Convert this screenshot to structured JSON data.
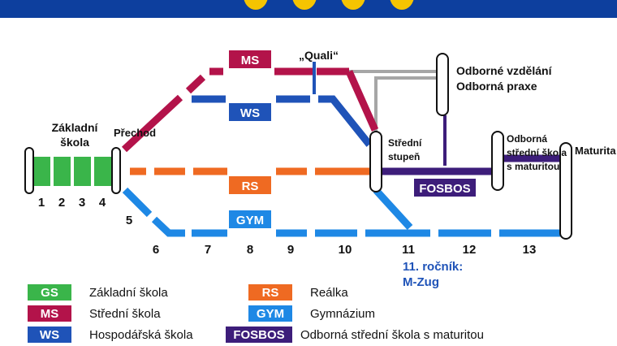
{
  "colors": {
    "gs": "#3ab54a",
    "ms": "#b3134a",
    "ws": "#1f53b8",
    "rs": "#ef6a22",
    "gym": "#1e88e5",
    "fosbos": "#3d1d7a",
    "gray": "#a6a6a6",
    "header": "#0d3f9e",
    "label_blue": "#1f53b8"
  },
  "labels": {
    "zakladni_skola": [
      "Základní",
      "škola"
    ],
    "prechod": "Přechod",
    "quali": "„Quali“",
    "odborne": [
      "Odborné vzdělání",
      "Odborná praxe"
    ],
    "stredni_stupen": [
      "Střední",
      "stupeň"
    ],
    "odborna_ss": [
      "Odborná",
      "střední škola",
      "s maturitou"
    ],
    "maturita": "Maturita",
    "rocnik": [
      "11. ročník:",
      "M-Zug"
    ]
  },
  "badges": {
    "ms": "MS",
    "ws": "WS",
    "rs": "RS",
    "gym": "GYM",
    "fosbos": "FOSBOS"
  },
  "grades": [
    "1",
    "2",
    "3",
    "4",
    "5",
    "6",
    "7",
    "8",
    "9",
    "10",
    "11",
    "12",
    "13"
  ],
  "legend": [
    {
      "code": "GS",
      "color": "#3ab54a",
      "text": "Základní škola"
    },
    {
      "code": "MS",
      "color": "#b3134a",
      "text": "Střední škola"
    },
    {
      "code": "WS",
      "color": "#1f53b8",
      "text": "Hospodářská škola"
    },
    {
      "code": "RS",
      "color": "#ef6a22",
      "text": "Reálka"
    },
    {
      "code": "GYM",
      "color": "#1e88e5",
      "text": "Gymnázium"
    },
    {
      "code": "FOSBOS",
      "color": "#3d1d7a",
      "text": "Odborná střední škola s maturitou"
    }
  ]
}
